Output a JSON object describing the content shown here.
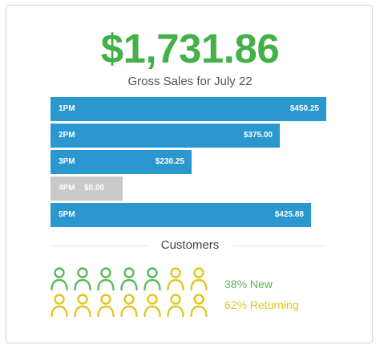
{
  "summary": {
    "total": "$1,731.86",
    "subtitle": "Gross Sales for July 22"
  },
  "colors": {
    "total_green": "#43b049",
    "bar_blue": "#2a97cf",
    "bar_empty_gray": "#c9c9c9",
    "new_green": "#5cb85c",
    "returning_yellow": "#e3c51f"
  },
  "chart_data": {
    "type": "bar",
    "orientation": "horizontal",
    "categories": [
      "1PM",
      "2PM",
      "3PM",
      "4PM",
      "5PM"
    ],
    "values": [
      450.25,
      375.0,
      230.25,
      0.0,
      425.88
    ],
    "value_labels": [
      "$450.25",
      "$375.00",
      "$230.25",
      "$0.00",
      "$425.88"
    ],
    "title": "",
    "xlabel": "",
    "ylabel": "",
    "xlim": [
      0,
      466
    ],
    "grid": false,
    "legend": "none"
  },
  "customers": {
    "title": "Customers",
    "new_label": "38% New",
    "returning_label": "62% Returning",
    "new_percent": 38,
    "returning_percent": 62,
    "icon": "person-icon",
    "rows": [
      [
        "new",
        "new",
        "new",
        "new",
        "new",
        "returning",
        "returning"
      ],
      [
        "returning",
        "returning",
        "returning",
        "returning",
        "returning",
        "returning",
        "returning"
      ]
    ]
  }
}
